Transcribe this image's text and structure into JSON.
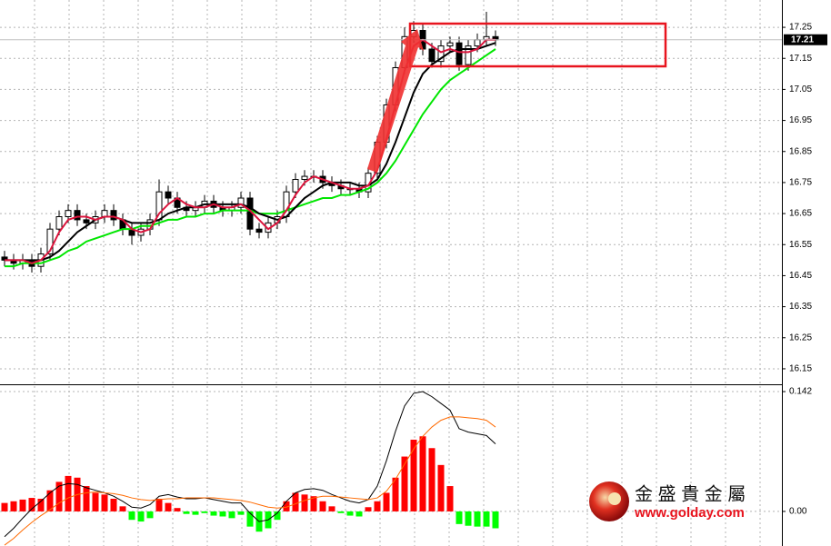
{
  "chart_data": [
    {
      "type": "candlestick",
      "open": [
        16.51,
        16.5,
        16.49,
        16.5,
        16.48,
        16.52,
        16.6,
        16.64,
        16.66,
        16.63,
        16.62,
        16.64,
        16.66,
        16.63,
        16.6,
        16.58,
        16.6,
        16.63,
        16.72,
        16.7,
        16.67,
        16.66,
        16.67,
        16.69,
        16.67,
        16.66,
        16.67,
        16.7,
        16.6,
        16.59,
        16.62,
        16.64,
        16.72,
        16.76,
        16.77,
        16.77,
        16.75,
        16.74,
        16.73,
        16.73,
        16.72,
        16.78,
        16.88,
        17.0,
        17.12,
        17.22,
        17.24,
        17.18,
        17.14,
        17.19,
        17.2,
        17.13,
        17.19,
        17.21,
        17.22
      ],
      "high": [
        16.53,
        16.52,
        16.52,
        16.52,
        16.54,
        16.62,
        16.66,
        16.68,
        16.68,
        16.65,
        16.66,
        16.68,
        16.68,
        16.65,
        16.62,
        16.62,
        16.65,
        16.76,
        16.74,
        16.72,
        16.69,
        16.69,
        16.71,
        16.71,
        16.69,
        16.69,
        16.72,
        16.72,
        16.62,
        16.64,
        16.66,
        16.74,
        16.78,
        16.79,
        16.79,
        16.79,
        16.77,
        16.76,
        16.75,
        16.75,
        16.8,
        16.9,
        17.02,
        17.14,
        17.25,
        17.27,
        17.26,
        17.2,
        17.21,
        17.22,
        17.22,
        17.21,
        17.23,
        17.3,
        17.24
      ],
      "low": [
        16.48,
        16.47,
        16.47,
        16.46,
        16.46,
        16.5,
        16.58,
        16.62,
        16.61,
        16.6,
        16.6,
        16.62,
        16.61,
        16.58,
        16.55,
        16.56,
        16.58,
        16.61,
        16.68,
        16.65,
        16.64,
        16.64,
        16.65,
        16.65,
        16.64,
        16.64,
        16.65,
        16.58,
        16.57,
        16.57,
        16.6,
        16.62,
        16.7,
        16.74,
        16.75,
        16.73,
        16.72,
        16.71,
        16.71,
        16.7,
        16.7,
        16.76,
        16.86,
        16.98,
        17.1,
        17.2,
        17.16,
        17.12,
        17.12,
        17.17,
        17.11,
        17.11,
        17.17,
        17.19,
        17.19
      ],
      "close": [
        16.5,
        16.49,
        16.5,
        16.48,
        16.52,
        16.6,
        16.64,
        16.66,
        16.63,
        16.62,
        16.64,
        16.66,
        16.63,
        16.6,
        16.58,
        16.6,
        16.63,
        16.72,
        16.7,
        16.67,
        16.66,
        16.67,
        16.69,
        16.67,
        16.66,
        16.67,
        16.7,
        16.6,
        16.59,
        16.62,
        16.64,
        16.72,
        16.76,
        16.77,
        16.77,
        16.75,
        16.74,
        16.73,
        16.73,
        16.72,
        16.78,
        16.88,
        17.0,
        17.12,
        17.22,
        17.24,
        17.18,
        17.14,
        17.19,
        17.2,
        17.13,
        17.19,
        17.21,
        17.22,
        17.21
      ],
      "series": [
        {
          "color": "#00e600",
          "values": [
            16.48,
            16.48,
            16.49,
            16.49,
            16.49,
            16.5,
            16.51,
            16.53,
            16.54,
            16.56,
            16.57,
            16.58,
            16.59,
            16.6,
            16.6,
            16.61,
            16.61,
            16.62,
            16.63,
            16.63,
            16.64,
            16.64,
            16.65,
            16.65,
            16.66,
            16.66,
            16.66,
            16.66,
            16.65,
            16.65,
            16.65,
            16.66,
            16.67,
            16.68,
            16.69,
            16.7,
            16.7,
            16.71,
            16.71,
            16.72,
            16.73,
            16.75,
            16.78,
            16.82,
            16.87,
            16.92,
            16.97,
            17.01,
            17.05,
            17.08,
            17.1,
            17.12,
            17.14,
            17.16,
            17.18
          ]
        },
        {
          "color": "#000000",
          "values": [
            16.5,
            16.5,
            16.5,
            16.5,
            16.5,
            16.51,
            16.53,
            16.56,
            16.59,
            16.61,
            16.63,
            16.64,
            16.64,
            16.63,
            16.62,
            16.62,
            16.62,
            16.63,
            16.65,
            16.66,
            16.67,
            16.67,
            16.68,
            16.68,
            16.68,
            16.68,
            16.68,
            16.67,
            16.65,
            16.64,
            16.63,
            16.64,
            16.67,
            16.7,
            16.72,
            16.74,
            16.75,
            16.75,
            16.75,
            16.74,
            16.74,
            16.76,
            16.81,
            16.88,
            16.96,
            17.04,
            17.1,
            17.13,
            17.15,
            17.17,
            17.18,
            17.18,
            17.18,
            17.19,
            17.2
          ]
        },
        {
          "color": "#dc143c",
          "values": [
            16.5,
            16.5,
            16.5,
            16.49,
            16.5,
            16.53,
            16.59,
            16.63,
            16.64,
            16.64,
            16.63,
            16.64,
            16.64,
            16.63,
            16.6,
            16.59,
            16.6,
            16.65,
            16.68,
            16.7,
            16.68,
            16.67,
            16.67,
            16.68,
            16.67,
            16.67,
            16.68,
            16.66,
            16.63,
            16.6,
            16.62,
            16.66,
            16.71,
            16.75,
            16.77,
            16.76,
            16.75,
            16.74,
            16.73,
            16.73,
            16.74,
            16.79,
            16.89,
            17.0,
            17.11,
            17.19,
            17.21,
            17.19,
            17.17,
            17.18,
            17.17,
            17.17,
            17.18,
            17.21,
            17.21
          ]
        }
      ],
      "ylim": [
        16.103,
        17.338
      ],
      "yticks": [
        16.15,
        16.25,
        16.35,
        16.45,
        16.55,
        16.65,
        16.75,
        16.85,
        16.95,
        17.05,
        17.15,
        17.25
      ],
      "last_price": 17.21,
      "grid": true
    },
    {
      "type": "macd",
      "values": [
        0.01,
        0.012,
        0.014,
        0.016,
        0.015,
        0.025,
        0.035,
        0.042,
        0.04,
        0.03,
        0.022,
        0.02,
        0.015,
        0.006,
        -0.01,
        -0.012,
        -0.008,
        0.015,
        0.01,
        0.004,
        -0.003,
        -0.004,
        -0.002,
        -0.005,
        -0.006,
        -0.008,
        -0.004,
        -0.018,
        -0.024,
        -0.02,
        -0.01,
        0.012,
        0.022,
        0.02,
        0.018,
        0.012,
        0.006,
        -0.002,
        -0.005,
        -0.006,
        0.005,
        0.012,
        0.022,
        0.04,
        0.065,
        0.085,
        0.089,
        0.075,
        0.055,
        0.03,
        -0.015,
        -0.017,
        -0.018,
        -0.018,
        -0.02
      ],
      "positive_color": "#ff0000",
      "negative_color": "#00ff00",
      "series": [
        {
          "color": "#000000",
          "values": [
            -0.03,
            -0.02,
            -0.008,
            0.003,
            0.012,
            0.022,
            0.03,
            0.033,
            0.032,
            0.028,
            0.025,
            0.022,
            0.018,
            0.012,
            0.005,
            0.004,
            0.008,
            0.018,
            0.02,
            0.017,
            0.015,
            0.015,
            0.016,
            0.014,
            0.012,
            0.01,
            0.01,
            -0.002,
            -0.012,
            -0.01,
            -0.002,
            0.012,
            0.022,
            0.026,
            0.027,
            0.025,
            0.02,
            0.016,
            0.012,
            0.01,
            0.014,
            0.03,
            0.06,
            0.095,
            0.125,
            0.14,
            0.142,
            0.136,
            0.128,
            0.12,
            0.098,
            0.094,
            0.092,
            0.09,
            0.08
          ]
        },
        {
          "color": "#ff6a00",
          "values": [
            -0.04,
            -0.032,
            -0.022,
            -0.013,
            -0.005,
            0.002,
            0.01,
            0.016,
            0.02,
            0.022,
            0.023,
            0.022,
            0.021,
            0.019,
            0.016,
            0.014,
            0.013,
            0.014,
            0.015,
            0.015,
            0.016,
            0.016,
            0.016,
            0.016,
            0.015,
            0.014,
            0.013,
            0.011,
            0.008,
            0.005,
            0.004,
            0.005,
            0.009,
            0.013,
            0.016,
            0.018,
            0.018,
            0.017,
            0.016,
            0.015,
            0.014,
            0.016,
            0.024,
            0.038,
            0.056,
            0.074,
            0.089,
            0.1,
            0.108,
            0.112,
            0.112,
            0.111,
            0.11,
            0.108,
            0.1
          ]
        }
      ],
      "ylim": [
        -0.041,
        0.1485
      ],
      "yticks": [
        {
          "value": 0,
          "label": "0.00"
        },
        0.142
      ],
      "grid": true
    }
  ],
  "watermark": {
    "name": "金 盛 貴 金 屬",
    "url": "www.golday.com"
  }
}
